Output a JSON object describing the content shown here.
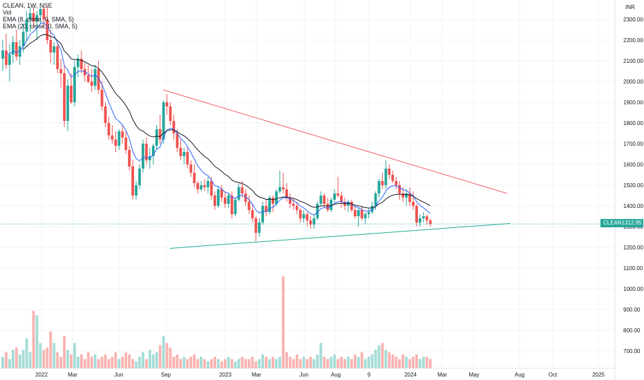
{
  "legend": {
    "symbol": "CLEAN, 1W, NSE",
    "vol": "Vol",
    "ema8": "EMA (8, close, 0, SMA, 5)",
    "ema20": "EMA (20, close, 0, SMA, 5)"
  },
  "currency": "INR",
  "last_price": {
    "ticker": "CLEAN",
    "value": "1312.95"
  },
  "chart_data": {
    "type": "candlestick",
    "price_axis_ticks": [
      "2300.00",
      "2200.00",
      "2100.00",
      "2000.00",
      "1900.00",
      "1800.00",
      "1700.00",
      "1600.00",
      "1500.00",
      "1400.00",
      "1300.00",
      "1200.00",
      "1100.00",
      "1000.00",
      "900.00",
      "800.00",
      "700.00"
    ],
    "time_axis_ticks": [
      "2022",
      "Mar",
      "Jun",
      "Sep",
      "2023",
      "Mar",
      "Jun",
      "Aug",
      "9",
      "2024",
      "Mar",
      "May",
      "Aug",
      "Oct",
      "2025"
    ],
    "ylim": [
      650,
      2360
    ],
    "candles": [
      [
        2110,
        2200,
        2050,
        2150
      ],
      [
        2150,
        2230,
        2060,
        2080
      ],
      [
        2080,
        2180,
        2000,
        2130
      ],
      [
        2130,
        2220,
        2090,
        2190
      ],
      [
        2190,
        2250,
        2100,
        2120
      ],
      [
        2120,
        2200,
        2080,
        2170
      ],
      [
        2170,
        2280,
        2140,
        2240
      ],
      [
        2240,
        2340,
        2200,
        2300
      ],
      [
        2300,
        2360,
        2240,
        2330
      ],
      [
        2330,
        2360,
        2260,
        2290
      ],
      [
        2290,
        2340,
        2200,
        2320
      ],
      [
        2320,
        2360,
        2280,
        2350
      ],
      [
        2350,
        2360,
        2260,
        2300
      ],
      [
        2300,
        2360,
        2180,
        2200
      ],
      [
        2200,
        2250,
        2090,
        2140
      ],
      [
        2140,
        2190,
        2080,
        2170
      ],
      [
        2170,
        2190,
        2040,
        2060
      ],
      [
        2060,
        2110,
        1970,
        2040
      ],
      [
        2040,
        2080,
        1780,
        1810
      ],
      [
        1810,
        2010,
        1760,
        1980
      ],
      [
        1980,
        2040,
        1890,
        1900
      ],
      [
        1900,
        2100,
        1880,
        2070
      ],
      [
        2070,
        2130,
        2020,
        2110
      ],
      [
        2110,
        2150,
        2040,
        2060
      ],
      [
        2060,
        2090,
        2000,
        2030
      ],
      [
        2030,
        2080,
        1990,
        2000
      ],
      [
        2000,
        2060,
        1950,
        1980
      ],
      [
        1980,
        2080,
        1960,
        2060
      ],
      [
        2060,
        2100,
        1940,
        1960
      ],
      [
        1960,
        2000,
        1860,
        1880
      ],
      [
        1880,
        1900,
        1780,
        1800
      ],
      [
        1800,
        1830,
        1720,
        1740
      ],
      [
        1740,
        1790,
        1700,
        1720
      ],
      [
        1720,
        1760,
        1660,
        1690
      ],
      [
        1690,
        1770,
        1670,
        1760
      ],
      [
        1760,
        1790,
        1700,
        1730
      ],
      [
        1730,
        1760,
        1650,
        1670
      ],
      [
        1670,
        1690,
        1570,
        1590
      ],
      [
        1590,
        1620,
        1430,
        1450
      ],
      [
        1450,
        1520,
        1430,
        1500
      ],
      [
        1500,
        1600,
        1480,
        1580
      ],
      [
        1580,
        1720,
        1560,
        1700
      ],
      [
        1700,
        1730,
        1600,
        1620
      ],
      [
        1620,
        1680,
        1580,
        1640
      ],
      [
        1640,
        1700,
        1600,
        1690
      ],
      [
        1690,
        1790,
        1670,
        1770
      ],
      [
        1770,
        1840,
        1700,
        1720
      ],
      [
        1720,
        1910,
        1700,
        1900
      ],
      [
        1900,
        1940,
        1840,
        1880
      ],
      [
        1880,
        1900,
        1790,
        1810
      ],
      [
        1810,
        1840,
        1720,
        1750
      ],
      [
        1750,
        1770,
        1660,
        1680
      ],
      [
        1680,
        1720,
        1620,
        1640
      ],
      [
        1640,
        1680,
        1600,
        1660
      ],
      [
        1660,
        1680,
        1580,
        1600
      ],
      [
        1600,
        1620,
        1540,
        1560
      ],
      [
        1560,
        1600,
        1490,
        1510
      ],
      [
        1510,
        1520,
        1460,
        1480
      ],
      [
        1480,
        1520,
        1470,
        1500
      ],
      [
        1500,
        1530,
        1470,
        1490
      ],
      [
        1490,
        1540,
        1460,
        1520
      ],
      [
        1520,
        1540,
        1430,
        1450
      ],
      [
        1450,
        1470,
        1380,
        1400
      ],
      [
        1400,
        1490,
        1390,
        1480
      ],
      [
        1480,
        1500,
        1420,
        1440
      ],
      [
        1440,
        1470,
        1390,
        1410
      ],
      [
        1410,
        1460,
        1390,
        1450
      ],
      [
        1450,
        1470,
        1340,
        1360
      ],
      [
        1360,
        1440,
        1350,
        1430
      ],
      [
        1430,
        1510,
        1420,
        1490
      ],
      [
        1490,
        1520,
        1440,
        1460
      ],
      [
        1460,
        1480,
        1400,
        1420
      ],
      [
        1420,
        1450,
        1360,
        1380
      ],
      [
        1380,
        1410,
        1320,
        1340
      ],
      [
        1340,
        1350,
        1230,
        1270
      ],
      [
        1270,
        1340,
        1250,
        1320
      ],
      [
        1320,
        1420,
        1310,
        1400
      ],
      [
        1400,
        1430,
        1350,
        1370
      ],
      [
        1370,
        1450,
        1360,
        1440
      ],
      [
        1440,
        1450,
        1370,
        1410
      ],
      [
        1410,
        1480,
        1400,
        1470
      ],
      [
        1470,
        1570,
        1460,
        1490
      ],
      [
        1490,
        1560,
        1460,
        1480
      ],
      [
        1480,
        1510,
        1420,
        1440
      ],
      [
        1440,
        1460,
        1390,
        1410
      ],
      [
        1410,
        1440,
        1380,
        1400
      ],
      [
        1400,
        1420,
        1360,
        1380
      ],
      [
        1380,
        1390,
        1320,
        1340
      ],
      [
        1340,
        1380,
        1320,
        1360
      ],
      [
        1360,
        1370,
        1300,
        1330
      ],
      [
        1330,
        1350,
        1290,
        1310
      ],
      [
        1310,
        1360,
        1290,
        1340
      ],
      [
        1340,
        1420,
        1330,
        1410
      ],
      [
        1410,
        1470,
        1400,
        1450
      ],
      [
        1450,
        1460,
        1390,
        1410
      ],
      [
        1410,
        1440,
        1370,
        1380
      ],
      [
        1380,
        1440,
        1370,
        1430
      ],
      [
        1430,
        1480,
        1410,
        1460
      ],
      [
        1460,
        1540,
        1440,
        1450
      ],
      [
        1450,
        1470,
        1390,
        1420
      ],
      [
        1420,
        1440,
        1380,
        1400
      ],
      [
        1400,
        1430,
        1370,
        1420
      ],
      [
        1420,
        1430,
        1370,
        1380
      ],
      [
        1380,
        1400,
        1340,
        1350
      ],
      [
        1350,
        1390,
        1300,
        1380
      ],
      [
        1380,
        1400,
        1330,
        1340
      ],
      [
        1340,
        1370,
        1310,
        1360
      ],
      [
        1360,
        1390,
        1340,
        1370
      ],
      [
        1370,
        1420,
        1360,
        1400
      ],
      [
        1400,
        1470,
        1380,
        1460
      ],
      [
        1460,
        1530,
        1440,
        1520
      ],
      [
        1520,
        1560,
        1480,
        1500
      ],
      [
        1500,
        1620,
        1480,
        1580
      ],
      [
        1580,
        1600,
        1530,
        1550
      ],
      [
        1550,
        1570,
        1510,
        1520
      ],
      [
        1520,
        1540,
        1480,
        1500
      ],
      [
        1500,
        1520,
        1430,
        1460
      ],
      [
        1460,
        1490,
        1420,
        1440
      ],
      [
        1440,
        1480,
        1400,
        1460
      ],
      [
        1460,
        1490,
        1400,
        1420
      ],
      [
        1420,
        1470,
        1380,
        1400
      ],
      [
        1400,
        1410,
        1300,
        1320
      ],
      [
        1320,
        1360,
        1300,
        1340
      ],
      [
        1340,
        1370,
        1320,
        1350
      ],
      [
        1350,
        1360,
        1310,
        1330
      ],
      [
        1330,
        1340,
        1300,
        1313
      ]
    ],
    "volume": [
      700,
      720,
      690,
      730,
      740,
      710,
      730,
      780,
      720,
      900,
      880,
      760,
      730,
      740,
      810,
      760,
      720,
      700,
      790,
      730,
      710,
      760,
      700,
      710,
      690,
      720,
      700,
      710,
      690,
      700,
      710,
      690,
      700,
      720,
      690,
      700,
      720,
      710,
      690,
      680,
      700,
      720,
      690,
      730,
      710,
      720,
      750,
      790,
      760,
      740,
      700,
      710,
      690,
      700,
      690,
      700,
      710,
      690,
      700,
      690,
      680,
      690,
      700,
      690,
      680,
      690,
      700,
      690,
      680,
      690,
      700,
      690,
      690,
      700,
      680,
      690,
      710,
      700,
      690,
      700,
      690,
      700,
      1050,
      720,
      700,
      690,
      710,
      690,
      700,
      690,
      700,
      690,
      710,
      760,
      700,
      690,
      700,
      710,
      690,
      700,
      690,
      700,
      690,
      710,
      700,
      720,
      690,
      700,
      710,
      730,
      750,
      760,
      730,
      720,
      710,
      700,
      690,
      710,
      700,
      690,
      700,
      710,
      690,
      700,
      700,
      690
    ],
    "trendline_resistance": {
      "start_price": 1960,
      "end_price": 1460
    },
    "trendline_support": {
      "start_price": 1195,
      "end_price": 1315
    },
    "last_price_line": 1312.95
  }
}
